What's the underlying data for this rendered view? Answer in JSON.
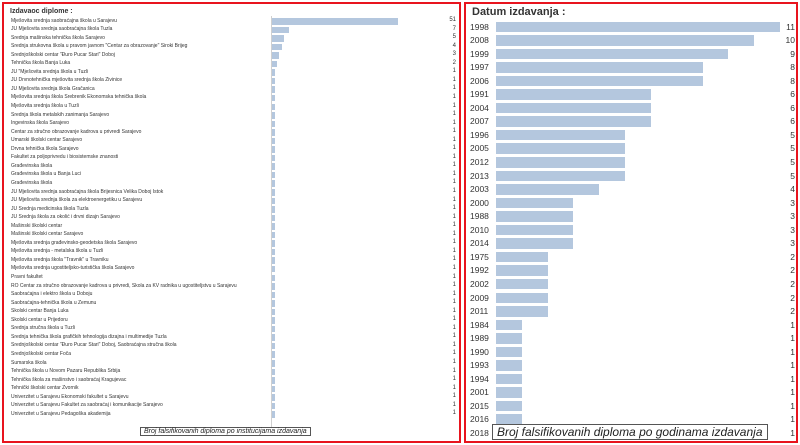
{
  "chart_data": [
    {
      "type": "bar",
      "orientation": "horizontal",
      "title": "Izdavaoc diplome :",
      "caption": "Broj falsifikovanih diploma po institucijama izdavanja",
      "categories": [
        "Mješovita srednja saobraćajna škola u Sarajevu",
        "JU Mješovita srednja saobraćajna škola Tuzla",
        "Srednja mašinska tehnička škola Sarajevo",
        "Srednja strukovna škola u pravom javnom \"Centar za obrazovanje\" Široki Brijeg",
        "Srednjoškolski centar \"Đuro Pucar Stari\" Doboj",
        "Tehnička škola Banja Luka",
        "JU \"Mješovita srednja škola u Tuzli",
        "JU Drvnotehnička mješovita srednja škola Živinice",
        "JU Mješovita srednja škola Gračanica",
        "Mješovita srednja škola Srebrenik Ekonomska tehnička škola",
        "Mješovita srednja škola u Tuzli",
        "Srednja škola metalskih zanimanja Sarajevo",
        "Ingevinska škola Sarajevo",
        "Centar za stručno obrazovanje kadrova u privredi Sarajevo",
        "Umarski školski centar Sarajevo",
        "Drvna tehnička škola Sarajevo",
        "Fakultet za poljoprivredu i biosistemske znanosti",
        "Građevinska škola",
        "Građevinska škola u Banja Luci",
        "Građevinska škola",
        "JU Mješovita srednja saobraćajna škola Brijesnica Velika Doboj Istok",
        "JU Mješovita srednja škola za elektroenergetiku u Sarajevu",
        "JU Srednja medicinska škola Tuzla",
        "JU Srednja škola za okolić i drvni dizajn Sarajevo",
        "Mašinski školski centar",
        "Mašinski školski centar Sarajevo",
        "Mješovita srednja građevinsko-geodetska škola Sarajevo",
        "Mješovita srednja - metalska škola u Tuzli",
        "Mješovita srednja škola \"Travnik\" u Travniku",
        "Mješovita srednja ugostiteljsko-turistička škola Sarajevo",
        "Pravni fakultet",
        "RO Centar za stručno obrazovanje kadrova u privredi, Škola za KV radnika u ugostiteljstvu u Sarajevu",
        "Saobraćajna i elektro škola u Doboju",
        "Saobraćajna-tehnička škola u Zemunu",
        "Školski centar Banja Luka",
        "Školski centar u Prijedoru",
        "Srednja stručna škola u Tuzli",
        "Srednja tehnička škola grafičkih tehnologija dizajna i multimedije Tuzla",
        "Srednjoškolski centar \"Đuro Pucar Stari\" Doboj, Saobraćajna stručna škola",
        "Srednjoškolski centar Foča",
        "Šumarska škola",
        "Tehnička škola u Novom Pazaru Republika Srbija",
        "Tehnička škola za mašinstvo i saobraćaj Kragujevac",
        "Tehnički školski centar Zvornik",
        "Univerzitet u Sarajevu Ekonomski fakultet u Sarajevu",
        "Univerzitet u Sarajevu Fakultet za saobraćaj i komunikacije Sarajevo",
        "Univerzitet u Sarajevu Pedagoška akademija"
      ],
      "values": [
        51,
        7,
        5,
        4,
        3,
        2,
        1,
        1,
        1,
        1,
        1,
        1,
        1,
        1,
        1,
        1,
        1,
        1,
        1,
        1,
        1,
        1,
        1,
        1,
        1,
        1,
        1,
        1,
        1,
        1,
        1,
        1,
        1,
        1,
        1,
        1,
        1,
        1,
        1,
        1,
        1,
        1,
        1,
        1,
        1,
        1,
        1
      ],
      "xlim": [
        0,
        51
      ],
      "grid": false,
      "color": "#b4c7de"
    },
    {
      "type": "bar",
      "orientation": "horizontal",
      "title": "Datum izdavanja :",
      "caption": "Broj falsifikovanih diploma po godinama izdavanja",
      "categories": [
        "1998",
        "2008",
        "1999",
        "1997",
        "2006",
        "1991",
        "2004",
        "2007",
        "1996",
        "2005",
        "2012",
        "2013",
        "2003",
        "2000",
        "1988",
        "2010",
        "2014",
        "1975",
        "1992",
        "2002",
        "2009",
        "2011",
        "1984",
        "1989",
        "1990",
        "1993",
        "1994",
        "2001",
        "2015",
        "2016",
        "2018"
      ],
      "values": [
        11,
        10,
        9,
        8,
        8,
        6,
        6,
        6,
        5,
        5,
        5,
        5,
        4,
        3,
        3,
        3,
        3,
        2,
        2,
        2,
        2,
        2,
        1,
        1,
        1,
        1,
        1,
        1,
        1,
        1,
        1
      ],
      "xlim": [
        0,
        11
      ],
      "grid": false,
      "color": "#b4c7de"
    }
  ]
}
